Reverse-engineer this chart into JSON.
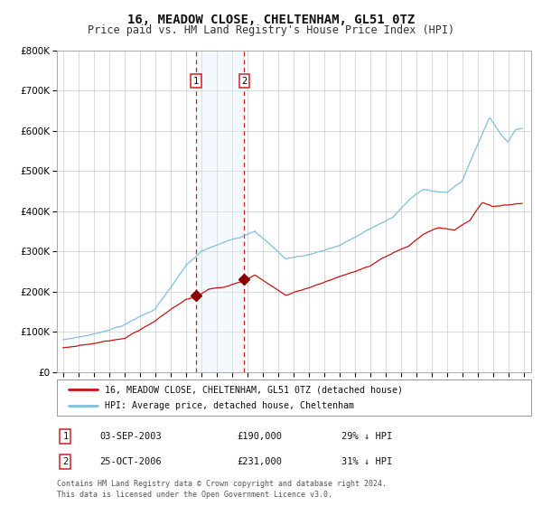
{
  "title": "16, MEADOW CLOSE, CHELTENHAM, GL51 0TZ",
  "subtitle": "Price paid vs. HM Land Registry's House Price Index (HPI)",
  "title_fontsize": 10,
  "subtitle_fontsize": 8.5,
  "background_color": "#ffffff",
  "plot_bg_color": "#ffffff",
  "grid_color": "#cccccc",
  "legend_line1": "16, MEADOW CLOSE, CHELTENHAM, GL51 0TZ (detached house)",
  "legend_line2": "HPI: Average price, detached house, Cheltenham",
  "sale1_date_label": "03-SEP-2003",
  "sale1_price_label": "£190,000",
  "sale1_hpi_label": "29% ↓ HPI",
  "sale2_date_label": "25-OCT-2006",
  "sale2_price_label": "£231,000",
  "sale2_hpi_label": "31% ↓ HPI",
  "footer": "Contains HM Land Registry data © Crown copyright and database right 2024.\nThis data is licensed under the Open Government Licence v3.0.",
  "hpi_color": "#7fbfdf",
  "price_color": "#cc1111",
  "sale_marker_color": "#880000",
  "vline_color": "#cc2222",
  "shade_color": "#ddeeff",
  "ylim": [
    0,
    800000
  ],
  "yticks": [
    0,
    100000,
    200000,
    300000,
    400000,
    500000,
    600000,
    700000,
    800000
  ],
  "sale1_x": 2003.67,
  "sale1_y": 190000,
  "sale2_x": 2006.81,
  "sale2_y": 231000,
  "xmin": 1994.6,
  "xmax": 2025.5
}
